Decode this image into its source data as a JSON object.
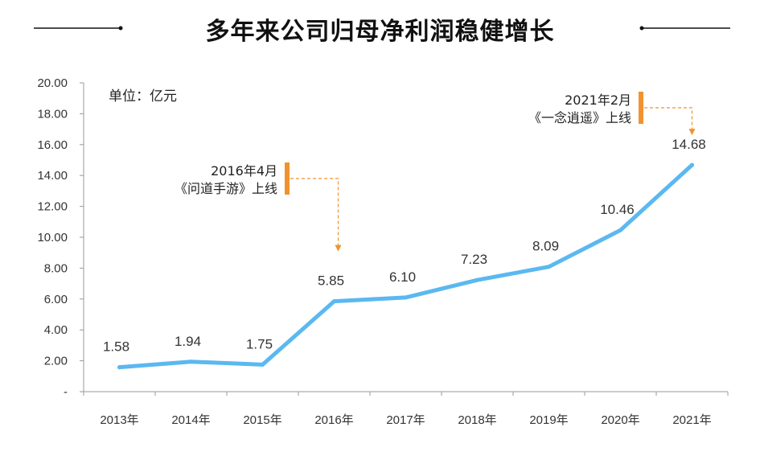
{
  "chart_data": {
    "type": "line",
    "title": "多年来公司归母净利润稳健增长",
    "unit_label": "单位：亿元",
    "categories": [
      "2013年",
      "2014年",
      "2015年",
      "2016年",
      "2017年",
      "2018年",
      "2019年",
      "2020年",
      "2021年"
    ],
    "series": [
      {
        "values": [
          1.58,
          1.94,
          1.75,
          5.85,
          6.1,
          7.23,
          8.09,
          10.46,
          14.68
        ],
        "color": "#5bb8f0"
      }
    ],
    "data_labels": [
      "1.58",
      "1.94",
      "1.75",
      "5.85",
      "6.10",
      "7.23",
      "8.09",
      "10.46",
      "14.68"
    ],
    "ylim": [
      0,
      20
    ],
    "y_ticks": [
      "-",
      "2.00",
      "4.00",
      "6.00",
      "8.00",
      "10.00",
      "12.00",
      "14.00",
      "16.00",
      "18.00",
      "20.00"
    ],
    "grid": false,
    "annotations": [
      {
        "category": "2016年",
        "line1": "2016年4月",
        "line2": "《问道手游》上线",
        "color": "#f0922e"
      },
      {
        "category": "2021年",
        "line1": "2021年2月",
        "line2": "《一念逍遥》上线",
        "color": "#f0922e"
      }
    ]
  }
}
